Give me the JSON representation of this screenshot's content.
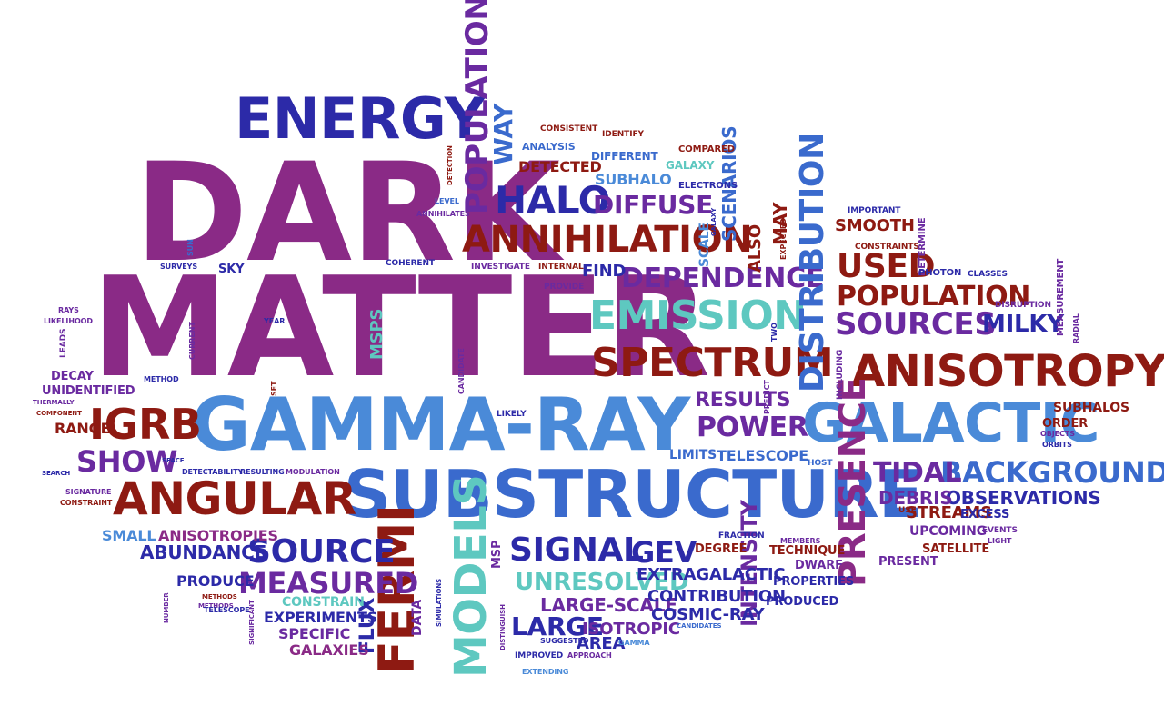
{
  "palette": {
    "purple": "#8a2a86",
    "violet": "#6a2aa0",
    "navy": "#2c2aa8",
    "blue": "#3a6acd",
    "sky": "#4a8ad8",
    "teal": "#5ec8c0",
    "darkred": "#8e1a12",
    "red": "#a01a1a"
  },
  "words": [
    {
      "id": "w-dark",
      "text": "DARK",
      "color": "purple"
    },
    {
      "id": "w-matter",
      "text": "MATTER",
      "color": "purple"
    },
    {
      "id": "w-energy",
      "text": "ENERGY",
      "color": "navy"
    },
    {
      "id": "w-gamma-ray",
      "text": "GAMMA-RAY",
      "color": "sky"
    },
    {
      "id": "w-substructure",
      "text": "SUBSTRUCTURE",
      "color": "blue"
    },
    {
      "id": "w-galactic",
      "text": "GALACTIC",
      "color": "sky"
    },
    {
      "id": "w-anisotropy",
      "text": "ANISOTROPY",
      "color": "darkred"
    },
    {
      "id": "w-angular",
      "text": "ANGULAR",
      "color": "darkred"
    },
    {
      "id": "w-fermi",
      "text": "FERMI",
      "color": "darkred"
    },
    {
      "id": "w-emission",
      "text": "EMISSION",
      "color": "teal"
    },
    {
      "id": "w-spectrum",
      "text": "SPECTRUM",
      "color": "darkred"
    },
    {
      "id": "w-annihilation",
      "text": "ANNIHILATION",
      "color": "darkred"
    },
    {
      "id": "w-halo",
      "text": "HALO",
      "color": "navy"
    },
    {
      "id": "w-diffuse",
      "text": "DIFFUSE",
      "color": "violet"
    },
    {
      "id": "w-dependence",
      "text": "DEPENDENCE",
      "color": "violet"
    },
    {
      "id": "w-distribution",
      "text": "DISTRIBUTION",
      "color": "blue"
    },
    {
      "id": "w-populations",
      "text": "POPULATIONS",
      "color": "violet"
    },
    {
      "id": "w-way",
      "text": "WAY",
      "color": "blue"
    },
    {
      "id": "w-igrb",
      "text": "IGRB",
      "color": "darkred"
    },
    {
      "id": "w-show",
      "text": "SHOW",
      "color": "violet"
    },
    {
      "id": "w-source",
      "text": "SOURCE",
      "color": "navy"
    },
    {
      "id": "w-signal",
      "text": "SIGNAL",
      "color": "navy"
    },
    {
      "id": "w-gev",
      "text": "GEV",
      "color": "navy"
    },
    {
      "id": "w-measured",
      "text": "MEASURED",
      "color": "violet"
    },
    {
      "id": "w-models",
      "text": "MODELS",
      "color": "teal"
    },
    {
      "id": "w-unresolved",
      "text": "UNRESOLVED",
      "color": "teal"
    },
    {
      "id": "w-background",
      "text": "BACKGROUND",
      "color": "blue"
    },
    {
      "id": "w-tidal",
      "text": "TIDAL",
      "color": "violet"
    },
    {
      "id": "w-presence",
      "text": "PRESENCE",
      "color": "purple"
    },
    {
      "id": "w-sources",
      "text": "SOURCES",
      "color": "violet"
    },
    {
      "id": "w-population",
      "text": "POPULATION",
      "color": "darkred"
    },
    {
      "id": "w-used",
      "text": "USED",
      "color": "darkred"
    },
    {
      "id": "w-milky",
      "text": "MILKY",
      "color": "navy"
    },
    {
      "id": "w-power",
      "text": "POWER",
      "color": "violet"
    },
    {
      "id": "w-results",
      "text": "RESULTS",
      "color": "violet"
    },
    {
      "id": "w-observations",
      "text": "OBSERVATIONS",
      "color": "navy"
    },
    {
      "id": "w-debris",
      "text": "DEBRIS",
      "color": "violet"
    },
    {
      "id": "w-streams",
      "text": "STREAMS",
      "color": "darkred"
    },
    {
      "id": "w-intensity",
      "text": "INTENSITY",
      "color": "violet"
    },
    {
      "id": "w-large",
      "text": "LARGE",
      "color": "navy"
    },
    {
      "id": "w-large-scale",
      "text": "LARGE-SCALE",
      "color": "violet"
    },
    {
      "id": "w-contribution",
      "text": "CONTRIBUTION",
      "color": "navy"
    },
    {
      "id": "w-cosmic-ray",
      "text": "COSMIC-RAY",
      "color": "navy"
    },
    {
      "id": "w-extragalactic",
      "text": "EXTRAGALACTIC",
      "color": "navy"
    },
    {
      "id": "w-isotropic",
      "text": "ISOTROPIC",
      "color": "violet"
    },
    {
      "id": "w-area",
      "text": "AREA",
      "color": "navy"
    },
    {
      "id": "w-flux",
      "text": "FLUX",
      "color": "navy"
    },
    {
      "id": "w-abundance",
      "text": "ABUNDANCE",
      "color": "navy"
    },
    {
      "id": "w-anisotropies",
      "text": "ANISOTROPIES",
      "color": "purple"
    },
    {
      "id": "w-small",
      "text": "SMALL",
      "color": "sky"
    },
    {
      "id": "w-experiments",
      "text": "EXPERIMENTS",
      "color": "navy"
    },
    {
      "id": "w-specific",
      "text": "SPECIFIC",
      "color": "violet"
    },
    {
      "id": "w-galaxies",
      "text": "GALAXIES",
      "color": "purple"
    },
    {
      "id": "w-constrain",
      "text": "CONSTRAIN",
      "color": "teal"
    },
    {
      "id": "w-produce",
      "text": "PRODUCE",
      "color": "navy"
    },
    {
      "id": "w-range",
      "text": "RANGE",
      "color": "darkred"
    },
    {
      "id": "w-unidentified",
      "text": "UNIDENTIFIED",
      "color": "violet"
    },
    {
      "id": "w-decay",
      "text": "DECAY",
      "color": "violet"
    },
    {
      "id": "w-telescope",
      "text": "TELESCOPE",
      "color": "blue"
    },
    {
      "id": "w-limits",
      "text": "LIMITS",
      "color": "blue"
    },
    {
      "id": "w-find",
      "text": "FIND",
      "color": "navy"
    },
    {
      "id": "w-smooth",
      "text": "SMOOTH",
      "color": "darkred"
    },
    {
      "id": "w-scenarios",
      "text": "SCENARIOS",
      "color": "blue"
    },
    {
      "id": "w-detected",
      "text": "DETECTED",
      "color": "darkred"
    },
    {
      "id": "w-subhalo",
      "text": "SUBHALO",
      "color": "sky"
    },
    {
      "id": "w-msps",
      "text": "MSPS",
      "color": "teal"
    },
    {
      "id": "w-sky",
      "text": "SKY",
      "color": "navy"
    },
    {
      "id": "w-may",
      "text": "MAY",
      "color": "darkred"
    },
    {
      "id": "w-also",
      "text": "ALSO",
      "color": "darkred"
    },
    {
      "id": "w-scale",
      "text": "SCALE",
      "color": "sky"
    },
    {
      "id": "w-subhalos",
      "text": "SUBHALOS",
      "color": "darkred"
    },
    {
      "id": "w-order",
      "text": "ORDER",
      "color": "darkred"
    },
    {
      "id": "w-upcoming",
      "text": "UPCOMING",
      "color": "violet"
    },
    {
      "id": "w-satellite",
      "text": "SATELLITE",
      "color": "darkred"
    },
    {
      "id": "w-present",
      "text": "PRESENT",
      "color": "violet"
    },
    {
      "id": "w-dwarf",
      "text": "DWARF",
      "color": "violet"
    },
    {
      "id": "w-properties",
      "text": "PROPERTIES",
      "color": "navy"
    },
    {
      "id": "w-produced",
      "text": "PRODUCED",
      "color": "navy"
    },
    {
      "id": "w-technique",
      "text": "TECHNIQUE",
      "color": "darkred"
    },
    {
      "id": "w-degree",
      "text": "DEGREE",
      "color": "darkred"
    },
    {
      "id": "w-excess",
      "text": "EXCESS",
      "color": "navy"
    },
    {
      "id": "w-data",
      "text": "DATA",
      "color": "violet"
    },
    {
      "id": "w-msp",
      "text": "MSP",
      "color": "violet"
    },
    {
      "id": "w-analysis",
      "text": "ANALYSIS",
      "color": "blue"
    },
    {
      "id": "w-different",
      "text": "DIFFERENT",
      "color": "blue"
    },
    {
      "id": "w-galaxy",
      "text": "GALAXY",
      "color": "teal"
    },
    {
      "id": "w-compared",
      "text": "COMPARED",
      "color": "darkred"
    },
    {
      "id": "w-electrons",
      "text": "ELECTRONS",
      "color": "navy"
    },
    {
      "id": "w-consistent",
      "text": "CONSISTENT",
      "color": "darkred"
    },
    {
      "id": "w-identify",
      "text": "IDENTIFY",
      "color": "darkred"
    },
    {
      "id": "w-important",
      "text": "IMPORTANT",
      "color": "navy"
    },
    {
      "id": "w-determine",
      "text": "DETERMINE",
      "color": "violet"
    },
    {
      "id": "w-constraints",
      "text": "CONSTRAINTS",
      "color": "darkred"
    },
    {
      "id": "w-photon",
      "text": "PHOTON",
      "color": "navy"
    },
    {
      "id": "w-classes",
      "text": "CLASSES",
      "color": "navy"
    },
    {
      "id": "w-measurement",
      "text": "MEASUREMENT",
      "color": "violet"
    },
    {
      "id": "w-disruption",
      "text": "DISRUPTION",
      "color": "violet"
    },
    {
      "id": "w-radial",
      "text": "RADIAL",
      "color": "violet"
    },
    {
      "id": "w-including",
      "text": "INCLUDING",
      "color": "violet"
    },
    {
      "id": "w-objects",
      "text": "OBJECTS",
      "color": "violet"
    },
    {
      "id": "w-orbits",
      "text": "ORBITS",
      "color": "navy"
    },
    {
      "id": "w-events",
      "text": "EVENTS",
      "color": "violet"
    },
    {
      "id": "w-light",
      "text": "LIGHT",
      "color": "violet"
    },
    {
      "id": "w-members",
      "text": "MEMBERS",
      "color": "violet"
    },
    {
      "id": "w-use",
      "text": "USE",
      "color": "darkred"
    },
    {
      "id": "w-host",
      "text": "HOST",
      "color": "blue"
    },
    {
      "id": "w-fraction",
      "text": "FRACTION",
      "color": "navy"
    },
    {
      "id": "w-predict",
      "text": "PREDICT",
      "color": "violet"
    },
    {
      "id": "w-likely",
      "text": "LIKELY",
      "color": "navy"
    },
    {
      "id": "w-candidate",
      "text": "CANDIDATE",
      "color": "violet"
    },
    {
      "id": "w-two",
      "text": "TWO",
      "color": "navy"
    },
    {
      "id": "w-provide",
      "text": "PROVIDE",
      "color": "violet"
    },
    {
      "id": "w-internal",
      "text": "INTERNAL",
      "color": "darkred"
    },
    {
      "id": "w-investigate",
      "text": "INVESTIGATE",
      "color": "violet"
    },
    {
      "id": "w-coherent",
      "text": "COHERENT",
      "color": "navy"
    },
    {
      "id": "w-level",
      "text": "LEVEL",
      "color": "blue"
    },
    {
      "id": "w-annihilates",
      "text": "ANNIHILATES",
      "color": "violet"
    },
    {
      "id": "w-detection",
      "text": "DETECTION",
      "color": "darkred"
    },
    {
      "id": "w-expected",
      "text": "EXPECTED",
      "color": "darkred"
    },
    {
      "id": "w-galaxy2",
      "text": "GALAXY",
      "color": "navy"
    },
    {
      "id": "w-sun",
      "text": "SUN",
      "color": "blue"
    },
    {
      "id": "w-surveys",
      "text": "SURVEYS",
      "color": "navy"
    },
    {
      "id": "w-rays",
      "text": "RAYS",
      "color": "violet"
    },
    {
      "id": "w-likelihood",
      "text": "LIKELIHOOD",
      "color": "violet"
    },
    {
      "id": "w-leads",
      "text": "LEADS",
      "color": "violet"
    },
    {
      "id": "w-current",
      "text": "CURRENT",
      "color": "violet"
    },
    {
      "id": "w-year",
      "text": "YEAR",
      "color": "navy"
    },
    {
      "id": "w-method",
      "text": "METHOD",
      "color": "navy"
    },
    {
      "id": "w-set",
      "text": "SET",
      "color": "darkred"
    },
    {
      "id": "w-thermally",
      "text": "THERMALLY",
      "color": "violet"
    },
    {
      "id": "w-component",
      "text": "COMPONENT",
      "color": "darkred"
    },
    {
      "id": "w-space",
      "text": "SPACE",
      "color": "navy"
    },
    {
      "id": "w-search",
      "text": "SEARCH",
      "color": "navy"
    },
    {
      "id": "w-signature",
      "text": "SIGNATURE",
      "color": "violet"
    },
    {
      "id": "w-constraint",
      "text": "CONSTRAINT",
      "color": "darkred"
    },
    {
      "id": "w-detectability",
      "text": "DETECTABILITY",
      "color": "navy"
    },
    {
      "id": "w-resulting",
      "text": "RESULTING",
      "color": "navy"
    },
    {
      "id": "w-modulation",
      "text": "MODULATION",
      "color": "violet"
    },
    {
      "id": "w-number",
      "text": "NUMBER",
      "color": "violet"
    },
    {
      "id": "w-methods",
      "text": "METHODS",
      "color": "darkred"
    },
    {
      "id": "w-telescope2",
      "text": "TELESCOPE",
      "color": "navy"
    },
    {
      "id": "w-significant",
      "text": "SIGNIFICANT",
      "color": "violet"
    },
    {
      "id": "w-simulations",
      "text": "SIMULATIONS",
      "color": "navy"
    },
    {
      "id": "w-distinguish",
      "text": "DISTINGUISH",
      "color": "violet"
    },
    {
      "id": "w-improved",
      "text": "IMPROVED",
      "color": "navy"
    },
    {
      "id": "w-suggested",
      "text": "SUGGESTED",
      "color": "navy"
    },
    {
      "id": "w-approach",
      "text": "APPROACH",
      "color": "violet"
    },
    {
      "id": "w-gamma",
      "text": "GAMMA",
      "color": "sky"
    },
    {
      "id": "w-extending",
      "text": "EXTENDING",
      "color": "sky"
    },
    {
      "id": "w-candidates",
      "text": "CANDIDATES",
      "color": "blue"
    },
    {
      "id": "w-methods2",
      "text": "METHODS",
      "color": "violet"
    }
  ]
}
